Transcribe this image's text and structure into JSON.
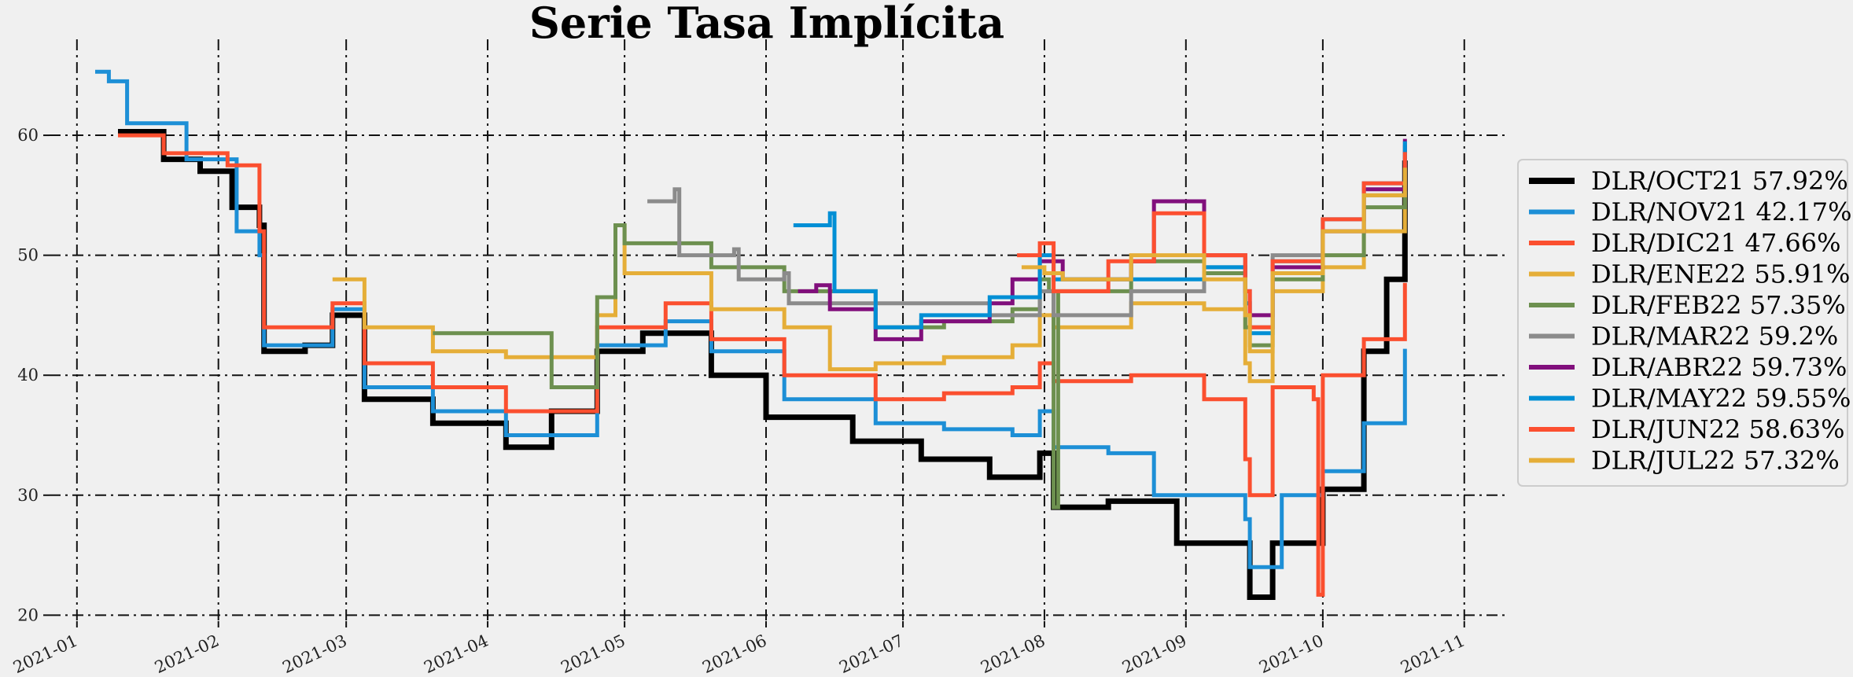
{
  "chart_data": {
    "type": "line",
    "title": "Serie Tasa Implícita",
    "xlabel": "",
    "ylabel": "",
    "xlim": [
      "2020-12-26",
      "2021-11-10"
    ],
    "ylim": [
      19.5,
      68
    ],
    "grid": true,
    "legend_position": "right",
    "x_ticks": [
      "2021-01-01",
      "2021-02-01",
      "2021-03-01",
      "2021-04-01",
      "2021-05-01",
      "2021-06-01",
      "2021-07-01",
      "2021-08-01",
      "2021-09-01",
      "2021-10-01",
      "2021-11-01"
    ],
    "x_tick_labels": [
      "2021-01",
      "2021-02",
      "2021-03",
      "2021-04",
      "2021-05",
      "2021-06",
      "2021-07",
      "2021-08",
      "2021-09",
      "2021-10",
      "2021-11"
    ],
    "y_ticks": [
      20,
      30,
      40,
      50,
      60
    ],
    "series": [
      {
        "name": "DLR/OCT21 57.92%",
        "color": "#000000",
        "width": 7,
        "points": [
          [
            "2021-01-10",
            60.3
          ],
          [
            "2021-01-20",
            58.0
          ],
          [
            "2021-01-28",
            57.0
          ],
          [
            "2021-02-04",
            54.0
          ],
          [
            "2021-02-10",
            52.5
          ],
          [
            "2021-02-11",
            42.0
          ],
          [
            "2021-02-20",
            42.5
          ],
          [
            "2021-02-26",
            45.0
          ],
          [
            "2021-03-05",
            38.0
          ],
          [
            "2021-03-20",
            36.0
          ],
          [
            "2021-04-05",
            34.0
          ],
          [
            "2021-04-15",
            37.0
          ],
          [
            "2021-04-25",
            42.0
          ],
          [
            "2021-05-05",
            43.5
          ],
          [
            "2021-05-20",
            40.0
          ],
          [
            "2021-06-01",
            36.5
          ],
          [
            "2021-06-20",
            34.5
          ],
          [
            "2021-07-05",
            33.0
          ],
          [
            "2021-07-20",
            31.5
          ],
          [
            "2021-07-31",
            33.5
          ],
          [
            "2021-08-03",
            29.0
          ],
          [
            "2021-08-15",
            29.5
          ],
          [
            "2021-08-30",
            26.0
          ],
          [
            "2021-09-14",
            26.0
          ],
          [
            "2021-09-15",
            21.5
          ],
          [
            "2021-09-20",
            26.0
          ],
          [
            "2021-10-01",
            30.5
          ],
          [
            "2021-10-10",
            42.0
          ],
          [
            "2021-10-15",
            48.0
          ],
          [
            "2021-10-19",
            57.9
          ]
        ]
      },
      {
        "name": "DLR/NOV21 42.17%",
        "color": "#1d8fd6",
        "width": 5,
        "points": [
          [
            "2021-01-05",
            65.3
          ],
          [
            "2021-01-08",
            64.5
          ],
          [
            "2021-01-12",
            61.0
          ],
          [
            "2021-01-25",
            58.0
          ],
          [
            "2021-02-05",
            52.0
          ],
          [
            "2021-02-10",
            50.0
          ],
          [
            "2021-02-11",
            42.5
          ],
          [
            "2021-02-26",
            45.5
          ],
          [
            "2021-03-05",
            39.0
          ],
          [
            "2021-03-20",
            37.0
          ],
          [
            "2021-04-05",
            35.0
          ],
          [
            "2021-04-25",
            42.5
          ],
          [
            "2021-05-10",
            44.5
          ],
          [
            "2021-05-20",
            42.0
          ],
          [
            "2021-06-05",
            38.0
          ],
          [
            "2021-06-25",
            36.0
          ],
          [
            "2021-07-10",
            35.5
          ],
          [
            "2021-07-25",
            35.0
          ],
          [
            "2021-07-31",
            37.0
          ],
          [
            "2021-08-03",
            34.0
          ],
          [
            "2021-08-15",
            33.5
          ],
          [
            "2021-08-25",
            30.0
          ],
          [
            "2021-09-14",
            28.0
          ],
          [
            "2021-09-15",
            24.0
          ],
          [
            "2021-09-22",
            30.0
          ],
          [
            "2021-10-01",
            32.0
          ],
          [
            "2021-10-10",
            36.0
          ],
          [
            "2021-10-19",
            42.2
          ]
        ]
      },
      {
        "name": "DLR/DIC21 47.66%",
        "color": "#fb4f2f",
        "width": 5,
        "points": [
          [
            "2021-01-10",
            60.0
          ],
          [
            "2021-01-20",
            58.5
          ],
          [
            "2021-02-03",
            57.5
          ],
          [
            "2021-02-10",
            52.0
          ],
          [
            "2021-02-11",
            44.0
          ],
          [
            "2021-02-26",
            46.0
          ],
          [
            "2021-03-05",
            41.0
          ],
          [
            "2021-03-20",
            39.0
          ],
          [
            "2021-04-05",
            37.0
          ],
          [
            "2021-04-25",
            44.0
          ],
          [
            "2021-05-10",
            46.0
          ],
          [
            "2021-05-20",
            43.0
          ],
          [
            "2021-06-05",
            40.0
          ],
          [
            "2021-06-25",
            38.0
          ],
          [
            "2021-07-10",
            38.5
          ],
          [
            "2021-07-25",
            39.0
          ],
          [
            "2021-07-31",
            41.0
          ],
          [
            "2021-08-03",
            39.5
          ],
          [
            "2021-08-20",
            40.0
          ],
          [
            "2021-09-05",
            38.0
          ],
          [
            "2021-09-14",
            33.0
          ],
          [
            "2021-09-15",
            30.0
          ],
          [
            "2021-09-20",
            39.0
          ],
          [
            "2021-09-29",
            38.0
          ],
          [
            "2021-09-30",
            21.7
          ],
          [
            "2021-10-01",
            40.0
          ],
          [
            "2021-10-10",
            43.0
          ],
          [
            "2021-10-19",
            47.7
          ]
        ]
      },
      {
        "name": "DLR/ENE22 55.91%",
        "color": "#e5ae38",
        "width": 5,
        "points": [
          [
            "2021-02-26",
            48.0
          ],
          [
            "2021-03-05",
            44.0
          ],
          [
            "2021-03-20",
            42.0
          ],
          [
            "2021-04-05",
            41.5
          ],
          [
            "2021-04-25",
            45.0
          ],
          [
            "2021-04-29",
            52.5
          ],
          [
            "2021-05-01",
            48.5
          ],
          [
            "2021-05-20",
            45.5
          ],
          [
            "2021-06-05",
            44.0
          ],
          [
            "2021-06-15",
            40.5
          ],
          [
            "2021-06-25",
            41.0
          ],
          [
            "2021-07-10",
            41.5
          ],
          [
            "2021-07-25",
            42.5
          ],
          [
            "2021-07-31",
            45.0
          ],
          [
            "2021-08-03",
            44.0
          ],
          [
            "2021-08-20",
            46.0
          ],
          [
            "2021-09-05",
            45.5
          ],
          [
            "2021-09-14",
            41.0
          ],
          [
            "2021-09-15",
            39.5
          ],
          [
            "2021-09-20",
            47.0
          ],
          [
            "2021-10-01",
            49.0
          ],
          [
            "2021-10-10",
            52.0
          ],
          [
            "2021-10-19",
            55.9
          ]
        ]
      },
      {
        "name": "DLR/FEB22 57.35%",
        "color": "#6d904f",
        "width": 5,
        "points": [
          [
            "2021-03-20",
            43.5
          ],
          [
            "2021-04-05",
            43.5
          ],
          [
            "2021-04-15",
            39.0
          ],
          [
            "2021-04-25",
            46.5
          ],
          [
            "2021-04-29",
            52.5
          ],
          [
            "2021-05-01",
            51.0
          ],
          [
            "2021-05-20",
            49.0
          ],
          [
            "2021-06-05",
            47.0
          ],
          [
            "2021-06-25",
            44.0
          ],
          [
            "2021-07-10",
            44.5
          ],
          [
            "2021-07-25",
            45.5
          ],
          [
            "2021-07-31",
            48.0
          ],
          [
            "2021-08-02",
            47.0
          ],
          [
            "2021-08-03",
            29.0
          ],
          [
            "2021-08-04",
            47.0
          ],
          [
            "2021-08-20",
            49.5
          ],
          [
            "2021-09-05",
            48.5
          ],
          [
            "2021-09-14",
            44.0
          ],
          [
            "2021-09-15",
            42.5
          ],
          [
            "2021-09-20",
            48.0
          ],
          [
            "2021-10-01",
            50.0
          ],
          [
            "2021-10-10",
            54.0
          ],
          [
            "2021-10-19",
            57.3
          ]
        ]
      },
      {
        "name": "DLR/MAR22 59.2%",
        "color": "#8b8b8b",
        "width": 5,
        "points": [
          [
            "2021-05-06",
            54.5
          ],
          [
            "2021-05-12",
            55.5
          ],
          [
            "2021-05-13",
            50.0
          ],
          [
            "2021-05-25",
            50.5
          ],
          [
            "2021-05-26",
            48.0
          ],
          [
            "2021-06-05",
            48.5
          ],
          [
            "2021-06-06",
            46.0
          ],
          [
            "2021-06-20",
            46.0
          ],
          [
            "2021-07-05",
            46.0
          ],
          [
            "2021-07-20",
            45.0
          ],
          [
            "2021-07-31",
            47.0
          ],
          [
            "2021-08-03",
            45.0
          ],
          [
            "2021-08-20",
            47.0
          ],
          [
            "2021-09-05",
            49.0
          ],
          [
            "2021-09-14",
            46.0
          ],
          [
            "2021-09-15",
            44.0
          ],
          [
            "2021-09-20",
            50.0
          ],
          [
            "2021-10-01",
            52.0
          ],
          [
            "2021-10-10",
            55.0
          ],
          [
            "2021-10-19",
            59.2
          ]
        ]
      },
      {
        "name": "DLR/ABR22 59.73%",
        "color": "#810f7c",
        "width": 5,
        "points": [
          [
            "2021-06-08",
            47.0
          ],
          [
            "2021-06-12",
            47.5
          ],
          [
            "2021-06-15",
            45.5
          ],
          [
            "2021-06-25",
            43.0
          ],
          [
            "2021-07-05",
            44.5
          ],
          [
            "2021-07-20",
            46.0
          ],
          [
            "2021-07-25",
            48.0
          ],
          [
            "2021-07-31",
            49.5
          ],
          [
            "2021-08-05",
            48.0
          ],
          [
            "2021-08-20",
            49.5
          ],
          [
            "2021-08-25",
            54.5
          ],
          [
            "2021-09-05",
            50.0
          ],
          [
            "2021-09-14",
            47.0
          ],
          [
            "2021-09-15",
            45.0
          ],
          [
            "2021-09-20",
            49.0
          ],
          [
            "2021-10-01",
            52.0
          ],
          [
            "2021-10-10",
            55.5
          ],
          [
            "2021-10-19",
            59.7
          ]
        ]
      },
      {
        "name": "DLR/MAY22 59.55%",
        "color": "#008fd5",
        "width": 5,
        "points": [
          [
            "2021-06-07",
            52.5
          ],
          [
            "2021-06-15",
            53.5
          ],
          [
            "2021-06-16",
            47.0
          ],
          [
            "2021-06-25",
            44.0
          ],
          [
            "2021-07-05",
            45.0
          ],
          [
            "2021-07-20",
            46.5
          ],
          [
            "2021-07-31",
            50.0
          ],
          [
            "2021-08-03",
            48.0
          ],
          [
            "2021-08-20",
            48.0
          ],
          [
            "2021-09-05",
            49.0
          ],
          [
            "2021-09-14",
            46.0
          ],
          [
            "2021-09-15",
            43.5
          ],
          [
            "2021-09-20",
            49.5
          ],
          [
            "2021-10-01",
            53.0
          ],
          [
            "2021-10-10",
            56.0
          ],
          [
            "2021-10-19",
            59.5
          ]
        ]
      },
      {
        "name": "DLR/JUN22 58.63%",
        "color": "#fc4f30",
        "width": 5,
        "points": [
          [
            "2021-07-26",
            50.0
          ],
          [
            "2021-07-31",
            51.0
          ],
          [
            "2021-08-03",
            47.0
          ],
          [
            "2021-08-15",
            49.5
          ],
          [
            "2021-08-25",
            53.5
          ],
          [
            "2021-09-05",
            50.0
          ],
          [
            "2021-09-14",
            47.0
          ],
          [
            "2021-09-15",
            44.0
          ],
          [
            "2021-09-20",
            49.5
          ],
          [
            "2021-10-01",
            53.0
          ],
          [
            "2021-10-10",
            56.0
          ],
          [
            "2021-10-19",
            58.6
          ]
        ]
      },
      {
        "name": "DLR/JUL22 57.32%",
        "color": "#e5ae38",
        "width": 5,
        "points": [
          [
            "2021-07-27",
            49.0
          ],
          [
            "2021-08-01",
            48.5
          ],
          [
            "2021-08-05",
            48.0
          ],
          [
            "2021-08-20",
            50.0
          ],
          [
            "2021-09-05",
            48.0
          ],
          [
            "2021-09-14",
            45.0
          ],
          [
            "2021-09-15",
            42.0
          ],
          [
            "2021-09-20",
            48.5
          ],
          [
            "2021-10-01",
            52.0
          ],
          [
            "2021-10-10",
            55.0
          ],
          [
            "2021-10-19",
            57.3
          ]
        ]
      }
    ]
  }
}
